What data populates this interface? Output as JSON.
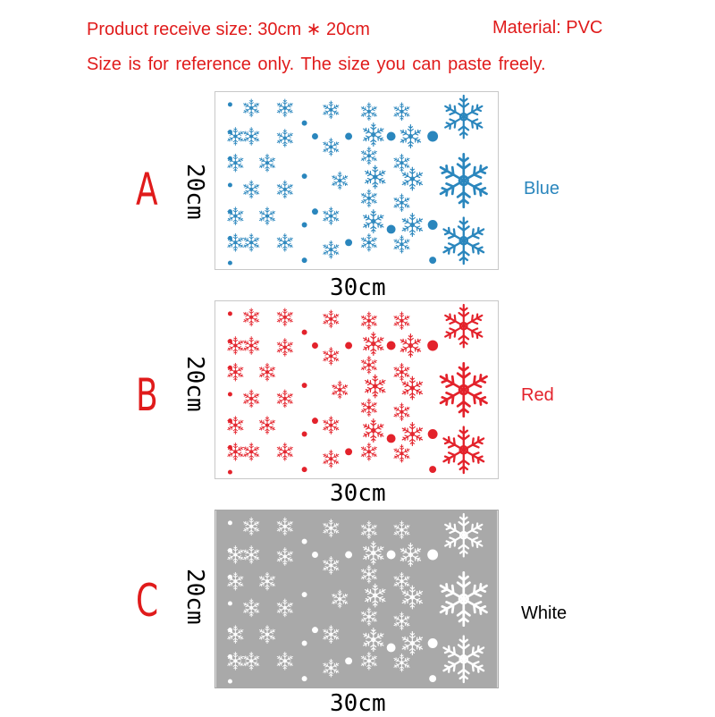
{
  "header": {
    "size_text": "Product receive size: 30cm ∗ 20cm",
    "material_text": "Material: PVC",
    "note_text": "Size is for reference only. The size you can paste freely."
  },
  "variants": [
    {
      "letter": "A",
      "height_label": "20cm",
      "width_label": "30cm",
      "color_label": "Blue",
      "flake_color": "#2a86bd",
      "panel_bg": "#ffffff",
      "label_color": "#2a86bd"
    },
    {
      "letter": "B",
      "height_label": "20cm",
      "width_label": "30cm",
      "color_label": "Red",
      "flake_color": "#e3222b",
      "panel_bg": "#ffffff",
      "label_color": "#e3222b"
    },
    {
      "letter": "C",
      "height_label": "20cm",
      "width_label": "30cm",
      "color_label": "White",
      "flake_color": "#ffffff",
      "panel_bg": "#a9a9a9",
      "label_color": "#000000"
    }
  ]
}
